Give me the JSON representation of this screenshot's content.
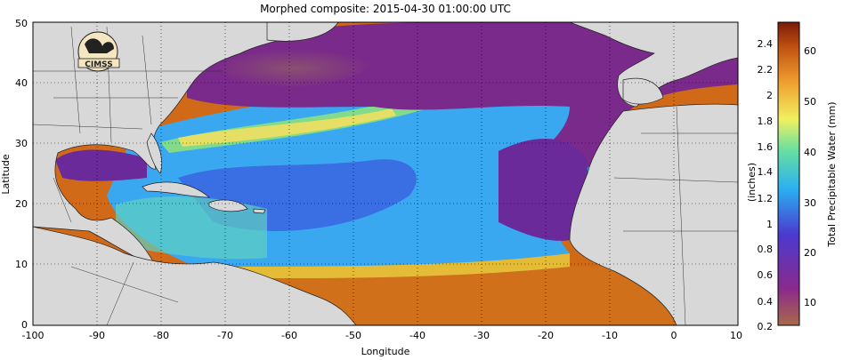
{
  "title": "Morphed composite: 2015-04-30 01:00:00 UTC",
  "xlabel": "Longitude",
  "ylabel": "Latitude",
  "logo_text": "CIMSS",
  "x_ticks": [
    "-100",
    "-90",
    "-80",
    "-70",
    "-60",
    "-50",
    "-40",
    "-30",
    "-20",
    "-10",
    "0",
    "10"
  ],
  "y_ticks": [
    "0",
    "10",
    "20",
    "30",
    "40",
    "50"
  ],
  "colorbar": {
    "left_label": "(inches)",
    "right_label": "Total Precipitable Water (mm)",
    "inch_ticks": [
      "0.2",
      "0.4",
      "0.6",
      "0.8",
      "1",
      "1.2",
      "1.4",
      "1.6",
      "1.8",
      "2",
      "2.2",
      "2.4"
    ],
    "mm_ticks": [
      "10",
      "20",
      "30",
      "40",
      "50",
      "60"
    ],
    "colors": [
      "#a86a4a",
      "#8a2a8a",
      "#4a3ad0",
      "#2ab0f0",
      "#6ae0a0",
      "#f0f060",
      "#f0a030",
      "#c05010",
      "#7a1a0a"
    ]
  },
  "map": {
    "lon_range": [
      -100,
      10
    ],
    "lat_range": [
      0,
      50
    ],
    "land_color": "#d8d8d8"
  }
}
